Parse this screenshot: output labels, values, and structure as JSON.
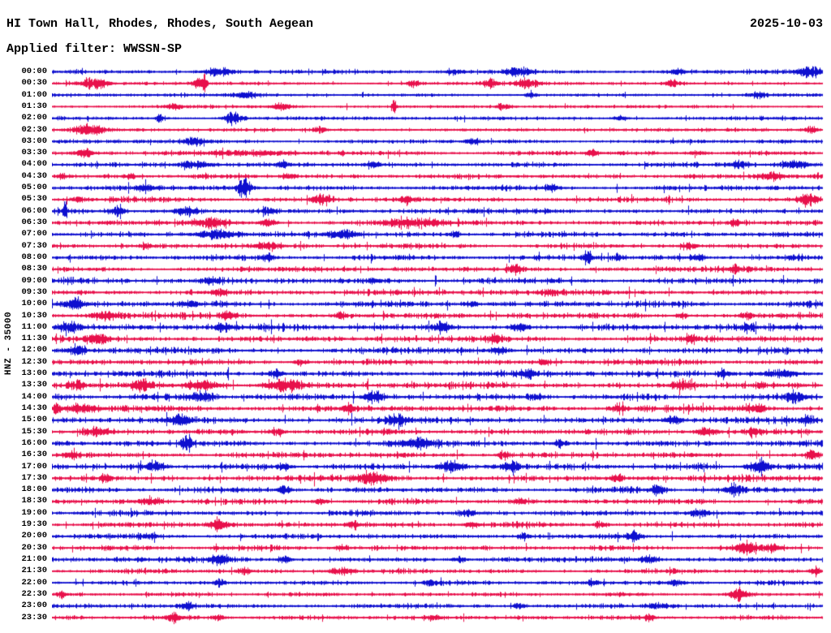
{
  "header": {
    "station": "HI Town Hall, Rhodes, Rhodes, South Aegean",
    "date": "2025-10-03",
    "filter_line": "Applied filter: WWSSN-SP"
  },
  "chart_data": {
    "type": "helicorder",
    "title": "HI Town Hall, Rhodes, Rhodes, South Aegean",
    "date": "2025-10-03",
    "filter": "WWSSN-SP",
    "axis_label": "HNZ - 35000",
    "minutes_per_row": 30,
    "rows_count": 48,
    "legend_position": "none",
    "grid": false,
    "colors": {
      "trace_even": "#0e0fcf",
      "trace_odd": "#e8104b",
      "text": "#000000",
      "background": "#ffffff"
    },
    "rows": [
      {
        "time": "00:00",
        "base": 1.2,
        "events": [
          [
            206,
            4,
            18
          ],
          [
            496,
            3,
            10
          ],
          [
            576,
            4.5,
            16
          ],
          [
            770,
            3,
            8
          ],
          [
            934,
            5.5,
            14
          ]
        ]
      },
      {
        "time": "00:30",
        "base": 0.9,
        "events": [
          [
            51,
            6,
            16
          ],
          [
            181,
            5,
            7
          ],
          [
            188,
            8,
            3
          ],
          [
            445,
            3,
            8
          ],
          [
            540,
            4,
            10
          ],
          [
            585,
            4.5,
            14
          ],
          [
            766,
            3.5,
            10
          ]
        ]
      },
      {
        "time": "01:00",
        "base": 1.0,
        "events": [
          [
            240,
            3,
            14
          ],
          [
            590,
            2.5,
            8
          ],
          [
            868,
            3,
            10
          ]
        ]
      },
      {
        "time": "01:30",
        "base": 0.9,
        "events": [
          [
            150,
            2.5,
            10
          ],
          [
            282,
            3.5,
            12
          ],
          [
            421,
            8.5,
            3
          ],
          [
            556,
            3,
            8
          ]
        ]
      },
      {
        "time": "02:00",
        "base": 1.0,
        "events": [
          [
            132,
            5,
            4
          ],
          [
            223,
            7.5,
            10
          ],
          [
            700,
            2.5,
            8
          ]
        ]
      },
      {
        "time": "02:30",
        "base": 1.0,
        "events": [
          [
            46,
            4.5,
            22
          ],
          [
            330,
            2.5,
            8
          ],
          [
            936,
            3.5,
            8
          ]
        ]
      },
      {
        "time": "03:00",
        "base": 1.1,
        "events": [
          [
            176,
            3.5,
            16
          ],
          [
            520,
            2.5,
            8
          ]
        ]
      },
      {
        "time": "03:30",
        "base": 1.3,
        "events": [
          [
            41,
            3.5,
            10
          ],
          [
            236,
            2.5,
            50
          ],
          [
            666,
            2.5,
            8
          ],
          [
            796,
            2.5,
            8
          ]
        ]
      },
      {
        "time": "04:00",
        "base": 1.4,
        "events": [
          [
            176,
            3.5,
            20
          ],
          [
            286,
            2.5,
            8
          ],
          [
            396,
            2.5,
            8
          ],
          [
            846,
            3.5,
            12
          ],
          [
            916,
            3.5,
            15
          ]
        ]
      },
      {
        "time": "04:30",
        "base": 1.4,
        "events": [
          [
            11,
            3.5,
            6
          ],
          [
            96,
            2.5,
            8
          ],
          [
            291,
            3.5,
            8
          ],
          [
            886,
            3.5,
            15
          ]
        ]
      },
      {
        "time": "05:00",
        "base": 1.5,
        "events": [
          [
            114,
            4.5,
            10
          ],
          [
            236,
            9.5,
            8
          ],
          [
            616,
            2.5,
            8
          ]
        ]
      },
      {
        "time": "05:30",
        "base": 1.5,
        "events": [
          [
            31,
            2.5,
            8
          ],
          [
            331,
            4.5,
            12
          ],
          [
            436,
            3.5,
            8
          ],
          [
            932,
            6,
            10
          ]
        ]
      },
      {
        "time": "06:00",
        "base": 1.5,
        "events": [
          [
            16,
            8,
            3
          ],
          [
            81,
            5,
            8
          ],
          [
            166,
            4.5,
            15
          ],
          [
            266,
            3.5,
            8
          ]
        ]
      },
      {
        "time": "06:30",
        "base": 1.6,
        "events": [
          [
            196,
            4.5,
            20
          ],
          [
            266,
            3.5,
            10
          ],
          [
            446,
            3.5,
            30
          ],
          [
            841,
            3.5,
            8
          ]
        ]
      },
      {
        "time": "07:00",
        "base": 1.5,
        "events": [
          [
            206,
            4.5,
            25
          ],
          [
            356,
            3.5,
            20
          ],
          [
            496,
            2.5,
            8
          ]
        ]
      },
      {
        "time": "07:30",
        "base": 1.5,
        "events": [
          [
            116,
            2.5,
            8
          ],
          [
            266,
            3.5,
            15
          ],
          [
            786,
            2.5,
            8
          ]
        ]
      },
      {
        "time": "08:00",
        "base": 1.6,
        "events": [
          [
            266,
            3.5,
            8
          ],
          [
            659,
            8,
            6
          ],
          [
            696,
            3,
            5
          ],
          [
            796,
            2.5,
            8
          ]
        ]
      },
      {
        "time": "08:30",
        "base": 1.6,
        "events": [
          [
            571,
            4.5,
            9
          ],
          [
            840,
            2.5,
            8
          ]
        ]
      },
      {
        "time": "09:00",
        "base": 1.8,
        "events": [
          [
            196,
            2.5,
            10
          ],
          [
            396,
            2,
            10
          ]
        ]
      },
      {
        "time": "09:30",
        "base": 1.8,
        "events": [
          [
            206,
            3.5,
            8
          ],
          [
            616,
            2.5,
            8
          ]
        ]
      },
      {
        "time": "10:00",
        "base": 1.9,
        "events": [
          [
            26,
            5,
            12
          ],
          [
            171,
            3.5,
            8
          ],
          [
            516,
            2.5,
            8
          ]
        ]
      },
      {
        "time": "10:30",
        "base": 1.8,
        "events": [
          [
            66,
            4.5,
            15
          ],
          [
            216,
            3.5,
            8
          ],
          [
            356,
            2.5,
            8
          ],
          [
            776,
            2.5,
            8
          ],
          [
            856,
            2.5,
            8
          ]
        ]
      },
      {
        "time": "11:00",
        "base": 2.0,
        "events": [
          [
            21,
            4.5,
            14
          ],
          [
            211,
            4.5,
            8
          ],
          [
            481,
            4.5,
            10
          ],
          [
            576,
            4.5,
            10
          ],
          [
            856,
            3,
            8
          ]
        ]
      },
      {
        "time": "11:30",
        "base": 1.9,
        "events": [
          [
            56,
            5,
            14
          ],
          [
            546,
            3.5,
            8
          ],
          [
            786,
            3,
            8
          ]
        ]
      },
      {
        "time": "12:00",
        "base": 1.9,
        "events": [
          [
            31,
            4.5,
            10
          ],
          [
            551,
            3.5,
            8
          ]
        ]
      },
      {
        "time": "12:30",
        "base": 1.8,
        "events": [
          [
            306,
            2.5,
            8
          ],
          [
            606,
            2.5,
            8
          ]
        ]
      },
      {
        "time": "13:00",
        "base": 1.9,
        "events": [
          [
            276,
            4.5,
            8
          ],
          [
            586,
            4.5,
            9
          ],
          [
            826,
            3.5,
            8
          ],
          [
            896,
            3.5,
            20
          ]
        ]
      },
      {
        "time": "13:30",
        "base": 2.0,
        "events": [
          [
            31,
            3.5,
            8
          ],
          [
            111,
            6,
            12
          ],
          [
            186,
            4.5,
            20
          ],
          [
            286,
            6,
            22
          ],
          [
            776,
            5,
            12
          ]
        ]
      },
      {
        "time": "14:00",
        "base": 2.0,
        "events": [
          [
            186,
            4.5,
            15
          ],
          [
            396,
            5,
            12
          ],
          [
            596,
            3,
            8
          ],
          [
            916,
            5,
            14
          ]
        ]
      },
      {
        "time": "14:30",
        "base": 2.0,
        "events": [
          [
            6,
            5,
            5
          ],
          [
            36,
            3.5,
            20
          ],
          [
            366,
            3.5,
            8
          ],
          [
            696,
            3.5,
            8
          ],
          [
            866,
            3.5,
            14
          ]
        ]
      },
      {
        "time": "15:00",
        "base": 1.9,
        "events": [
          [
            156,
            4.5,
            15
          ],
          [
            426,
            3.5,
            15
          ],
          [
            766,
            3.5,
            10
          ],
          [
            931,
            4.5,
            8
          ]
        ]
      },
      {
        "time": "15:30",
        "base": 1.8,
        "events": [
          [
            56,
            3.5,
            15
          ],
          [
            276,
            3.5,
            10
          ],
          [
            806,
            4.5,
            12
          ],
          [
            866,
            3.5,
            8
          ]
        ]
      },
      {
        "time": "16:00",
        "base": 1.8,
        "events": [
          [
            166,
            6.5,
            7
          ],
          [
            446,
            4,
            20
          ],
          [
            626,
            3.5,
            8
          ]
        ]
      },
      {
        "time": "16:30",
        "base": 1.7,
        "events": [
          [
            26,
            3.5,
            8
          ],
          [
            556,
            3.5,
            8
          ],
          [
            936,
            3.5,
            8
          ]
        ]
      },
      {
        "time": "17:00",
        "base": 1.9,
        "events": [
          [
            126,
            4.5,
            12
          ],
          [
            286,
            3.5,
            8
          ],
          [
            491,
            5,
            14
          ],
          [
            566,
            5,
            10
          ],
          [
            871,
            6,
            14
          ]
        ]
      },
      {
        "time": "17:30",
        "base": 1.8,
        "events": [
          [
            66,
            3.5,
            8
          ],
          [
            396,
            5,
            18
          ],
          [
            696,
            3.5,
            8
          ],
          [
            1140,
            0,
            8
          ]
        ]
      },
      {
        "time": "18:00",
        "base": 1.7,
        "events": [
          [
            286,
            4.5,
            8
          ],
          [
            746,
            4.5,
            10
          ],
          [
            841,
            5.5,
            10
          ]
        ]
      },
      {
        "time": "18:30",
        "base": 1.6,
        "events": [
          [
            121,
            3.5,
            15
          ],
          [
            331,
            2.5,
            8
          ],
          [
            576,
            2.5,
            8
          ]
        ]
      },
      {
        "time": "19:00",
        "base": 1.6,
        "events": [
          [
            511,
            3,
            8
          ],
          [
            796,
            3.5,
            12
          ]
        ]
      },
      {
        "time": "19:30",
        "base": 1.6,
        "events": [
          [
            206,
            4.5,
            12
          ],
          [
            371,
            2.5,
            8
          ],
          [
            516,
            2.5,
            8
          ],
          [
            676,
            3,
            8
          ]
        ]
      },
      {
        "time": "20:00",
        "base": 1.5,
        "events": [
          [
            121,
            2.5,
            8
          ],
          [
            581,
            3,
            8
          ],
          [
            716,
            3.5,
            10
          ]
        ]
      },
      {
        "time": "20:30",
        "base": 1.5,
        "events": [
          [
            356,
            2.5,
            8
          ],
          [
            856,
            4.5,
            15
          ],
          [
            891,
            3.5,
            8
          ]
        ]
      },
      {
        "time": "21:00",
        "base": 1.5,
        "events": [
          [
            206,
            4.5,
            12
          ],
          [
            286,
            3.5,
            8
          ],
          [
            501,
            2.5,
            8
          ],
          [
            736,
            3.5,
            10
          ]
        ]
      },
      {
        "time": "21:30",
        "base": 1.3,
        "events": [
          [
            236,
            2.5,
            8
          ],
          [
            356,
            3.5,
            15
          ],
          [
            941,
            4.5,
            6
          ]
        ]
      },
      {
        "time": "22:00",
        "base": 1.3,
        "events": [
          [
            206,
            3.5,
            6
          ],
          [
            466,
            2.5,
            8
          ],
          [
            666,
            2.5,
            8
          ],
          [
            766,
            2.5,
            8
          ]
        ]
      },
      {
        "time": "22:30",
        "base": 1.1,
        "events": [
          [
            11,
            3.5,
            5
          ],
          [
            846,
            5.5,
            10
          ]
        ]
      },
      {
        "time": "23:00",
        "base": 1.3,
        "events": [
          [
            166,
            3.5,
            8
          ],
          [
            576,
            2.5,
            8
          ],
          [
            746,
            2.5,
            14
          ]
        ]
      },
      {
        "time": "23:30",
        "base": 1.3,
        "events": [
          [
            151,
            3.5,
            10
          ],
          [
            206,
            2.5,
            8
          ],
          [
            471,
            2.5,
            8
          ],
          [
            736,
            3.5,
            6
          ]
        ]
      }
    ]
  }
}
